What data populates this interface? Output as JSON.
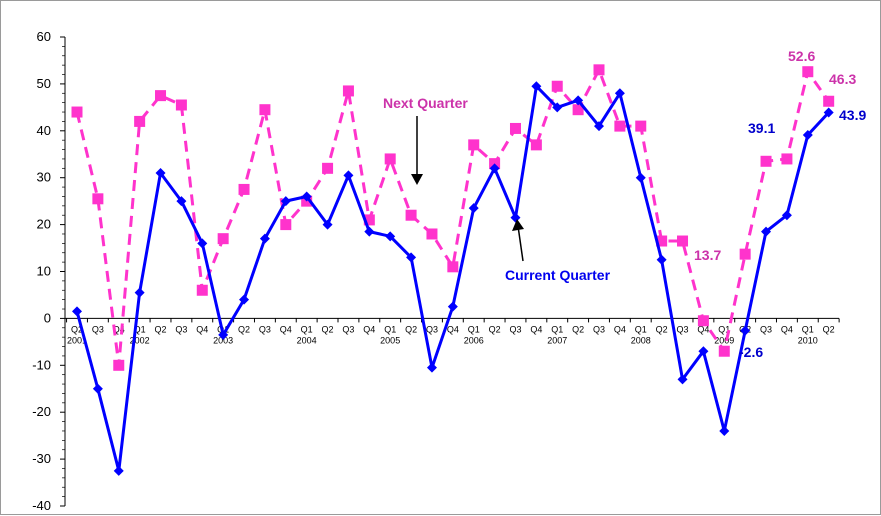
{
  "chart_data": {
    "type": "line",
    "ylim": [
      -40,
      60
    ],
    "yticks": [
      -40,
      -30,
      -20,
      -10,
      0,
      10,
      20,
      30,
      40,
      50,
      60
    ],
    "quarter_labels": [
      "Q2",
      "Q3",
      "Q4",
      "Q1",
      "Q2",
      "Q3",
      "Q4",
      "Q1",
      "Q2",
      "Q3",
      "Q4",
      "Q1",
      "Q2",
      "Q3",
      "Q4",
      "Q1",
      "Q2",
      "Q3",
      "Q4",
      "Q1",
      "Q2",
      "Q3",
      "Q4",
      "Q1",
      "Q2",
      "Q3",
      "Q4",
      "Q1",
      "Q2",
      "Q3",
      "Q4",
      "Q1",
      "Q2",
      "Q3",
      "Q4",
      "Q1",
      "Q2"
    ],
    "year_labels": [
      {
        "index": 0,
        "text": "2001"
      },
      {
        "index": 3,
        "text": "2002"
      },
      {
        "index": 7,
        "text": "2003"
      },
      {
        "index": 11,
        "text": "2004"
      },
      {
        "index": 15,
        "text": "2005"
      },
      {
        "index": 19,
        "text": "2006"
      },
      {
        "index": 23,
        "text": "2007"
      },
      {
        "index": 27,
        "text": "2008"
      },
      {
        "index": 31,
        "text": "2009"
      },
      {
        "index": 35,
        "text": "2010"
      }
    ],
    "series": [
      {
        "name": "Current Quarter",
        "color": "#0000ff",
        "style": "solid",
        "marker": "diamond",
        "values": [
          1.5,
          -15,
          -32.5,
          5.5,
          31,
          25,
          16,
          -3.5,
          4,
          17,
          25,
          26,
          20,
          30.5,
          18.5,
          17.5,
          13,
          -10.5,
          2.5,
          23.5,
          32,
          21.5,
          49.5,
          45,
          46.5,
          41,
          48,
          30,
          12.5,
          -13,
          -7,
          -24,
          -2.6,
          18.5,
          22,
          39.1,
          43.9
        ]
      },
      {
        "name": "Next Quarter",
        "color": "#ff33cc",
        "style": "dashed",
        "marker": "square",
        "values": [
          44,
          25.5,
          -10,
          42,
          47.5,
          45.5,
          6,
          17,
          27.5,
          44.5,
          20,
          25,
          32,
          48.5,
          21,
          34,
          22,
          18,
          11,
          37,
          33,
          40.5,
          37,
          49.5,
          44.5,
          53,
          41,
          41,
          16.5,
          16.5,
          -0.5,
          -7,
          13.7,
          33.5,
          34,
          52.6,
          46.3
        ]
      }
    ],
    "annotations": {
      "next_quarter": "Next Quarter",
      "current_quarter": "Current Quarter"
    },
    "data_labels": {
      "current_39_1": "39.1",
      "current_43_9": "43.9",
      "current_neg_2_6": "-2.6",
      "next_52_6": "52.6",
      "next_46_3": "46.3",
      "next_13_7": "13.7"
    }
  }
}
